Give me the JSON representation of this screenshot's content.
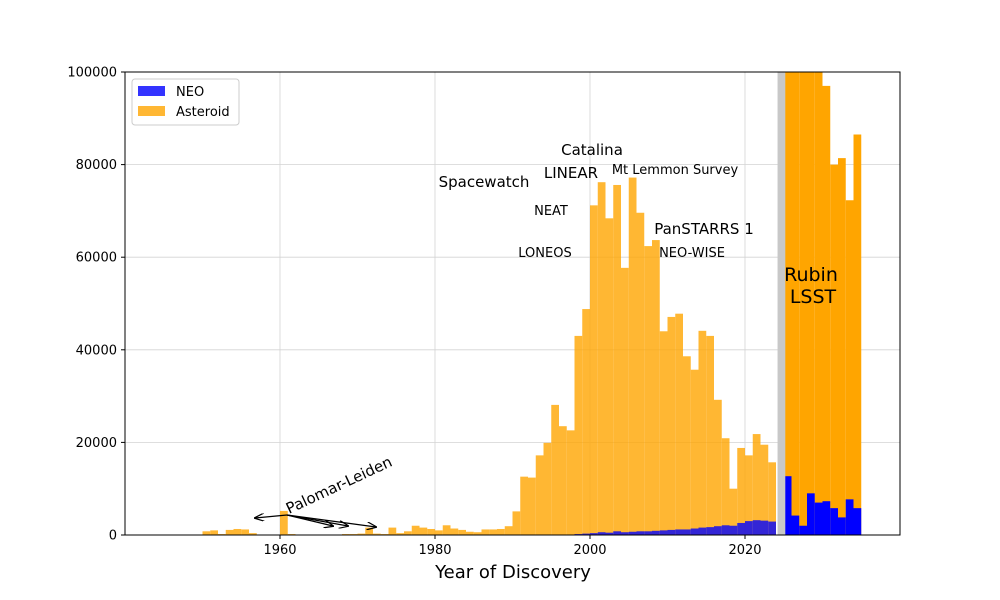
{
  "colors": {
    "neo": "#0000ff",
    "asteroid": "#ffa500",
    "lsst_band": "#c8c8c8",
    "grid": "#d3d3d3"
  },
  "chart_data": {
    "type": "bar",
    "xlabel": "Year of Discovery",
    "ylabel": "",
    "xlim": [
      1940,
      2040
    ],
    "ylim": [
      0,
      100000
    ],
    "x_ticks": [
      1960,
      1980,
      2000,
      2020
    ],
    "y_ticks": [
      0,
      20000,
      40000,
      60000,
      80000,
      100000
    ],
    "grid": true,
    "legend_position": "top-left",
    "legend": [
      {
        "label": "NEO",
        "color": "#0000ff"
      },
      {
        "label": "Asteroid",
        "color": "#ffa500"
      }
    ],
    "bin_width_years": 1,
    "series": [
      {
        "name": "Asteroid",
        "bins": [
          [
            1950,
            800
          ],
          [
            1951,
            1000
          ],
          [
            1952,
            200
          ],
          [
            1953,
            1100
          ],
          [
            1954,
            1300
          ],
          [
            1955,
            1200
          ],
          [
            1956,
            400
          ],
          [
            1957,
            100
          ],
          [
            1958,
            100
          ],
          [
            1959,
            100
          ],
          [
            1960,
            5200
          ],
          [
            1961,
            200
          ],
          [
            1962,
            100
          ],
          [
            1963,
            100
          ],
          [
            1964,
            100
          ],
          [
            1965,
            100
          ],
          [
            1966,
            100
          ],
          [
            1967,
            100
          ],
          [
            1968,
            200
          ],
          [
            1969,
            200
          ],
          [
            1970,
            300
          ],
          [
            1971,
            1600
          ],
          [
            1972,
            300
          ],
          [
            1973,
            200
          ],
          [
            1974,
            1600
          ],
          [
            1975,
            400
          ],
          [
            1976,
            800
          ],
          [
            1977,
            2000
          ],
          [
            1978,
            1600
          ],
          [
            1979,
            1300
          ],
          [
            1980,
            1000
          ],
          [
            1981,
            2100
          ],
          [
            1982,
            1400
          ],
          [
            1983,
            1100
          ],
          [
            1984,
            700
          ],
          [
            1985,
            600
          ],
          [
            1986,
            1200
          ],
          [
            1987,
            1200
          ],
          [
            1988,
            1300
          ],
          [
            1989,
            1900
          ],
          [
            1990,
            5100
          ],
          [
            1991,
            12600
          ],
          [
            1992,
            12400
          ],
          [
            1993,
            17200
          ],
          [
            1994,
            19900
          ],
          [
            1995,
            28100
          ],
          [
            1996,
            23500
          ],
          [
            1997,
            22600
          ],
          [
            1998,
            43000
          ],
          [
            1999,
            48800
          ],
          [
            2000,
            71200
          ],
          [
            2001,
            76200
          ],
          [
            2002,
            68400
          ],
          [
            2003,
            75600
          ],
          [
            2004,
            57700
          ],
          [
            2005,
            77200
          ],
          [
            2006,
            69600
          ],
          [
            2007,
            62400
          ],
          [
            2008,
            63700
          ],
          [
            2009,
            44000
          ],
          [
            2010,
            47100
          ],
          [
            2011,
            47800
          ],
          [
            2012,
            38600
          ],
          [
            2013,
            35700
          ],
          [
            2014,
            44100
          ],
          [
            2015,
            43000
          ],
          [
            2016,
            29200
          ],
          [
            2017,
            20900
          ],
          [
            2018,
            10000
          ],
          [
            2019,
            18800
          ],
          [
            2020,
            17200
          ],
          [
            2021,
            21800
          ],
          [
            2022,
            19500
          ],
          [
            2023,
            15700
          ],
          [
            2025,
            100000
          ],
          [
            2026,
            100000
          ],
          [
            2027,
            100000
          ],
          [
            2028,
            100000
          ],
          [
            2029,
            100000
          ],
          [
            2030,
            97000
          ],
          [
            2031,
            80000
          ],
          [
            2032,
            81400
          ],
          [
            2033,
            72300
          ],
          [
            2034,
            86500
          ]
        ]
      },
      {
        "name": "NEO",
        "bins": [
          [
            1997,
            100
          ],
          [
            1998,
            200
          ],
          [
            1999,
            300
          ],
          [
            2000,
            400
          ],
          [
            2001,
            600
          ],
          [
            2002,
            500
          ],
          [
            2003,
            800
          ],
          [
            2004,
            600
          ],
          [
            2005,
            700
          ],
          [
            2006,
            800
          ],
          [
            2007,
            800
          ],
          [
            2008,
            900
          ],
          [
            2009,
            1000
          ],
          [
            2010,
            1100
          ],
          [
            2011,
            1200
          ],
          [
            2012,
            1200
          ],
          [
            2013,
            1400
          ],
          [
            2014,
            1600
          ],
          [
            2015,
            1700
          ],
          [
            2016,
            1900
          ],
          [
            2017,
            2100
          ],
          [
            2018,
            2000
          ],
          [
            2019,
            2600
          ],
          [
            2020,
            3000
          ],
          [
            2021,
            3200
          ],
          [
            2022,
            3100
          ],
          [
            2023,
            2900
          ],
          [
            2025,
            12700
          ],
          [
            2026,
            4200
          ],
          [
            2027,
            2000
          ],
          [
            2028,
            9000
          ],
          [
            2029,
            7000
          ],
          [
            2030,
            7300
          ],
          [
            2031,
            5800
          ],
          [
            2032,
            3800
          ],
          [
            2033,
            7700
          ],
          [
            2034,
            5800
          ]
        ]
      }
    ],
    "lsst_band": [
      2024.2,
      2025.2
    ],
    "annotations": {
      "catalina": "Catalina",
      "linear": "LINEAR",
      "mt_lemmon": "Mt Lemmon Survey",
      "spacewatch": "Spacewatch",
      "neat": "NEAT",
      "panstarrs": "PanSTARRS 1",
      "loneos": "LONEOS",
      "neowise": "NEO-WISE",
      "rubin_line1": "Rubin",
      "rubin_line2": "LSST",
      "palomar_leiden": "Palomar-Leiden"
    }
  }
}
